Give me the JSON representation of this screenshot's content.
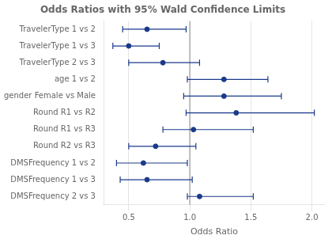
{
  "chart_data": {
    "type": "forest",
    "title": "Odds Ratios with 95% Wald Confidence Limits",
    "xlabel": "Odds Ratio",
    "categories": [
      "TravelerType 1 vs 2",
      "TravelerType 1 vs 3",
      "TravelerType 2 vs 3",
      "age 1 vs 2",
      "gender Female vs Male",
      "Round R1 vs R2",
      "Round R1 vs R3",
      "Round R2 vs R3",
      "DMSFrequency 1 vs 2",
      "DMSFrequency 1 vs 3",
      "DMSFrequency 2 vs 3"
    ],
    "values": [
      0.65,
      0.5,
      0.78,
      1.28,
      1.28,
      1.38,
      1.03,
      0.72,
      0.62,
      0.65,
      1.08
    ],
    "lower": [
      0.45,
      0.37,
      0.5,
      0.98,
      0.95,
      0.97,
      0.78,
      0.5,
      0.4,
      0.43,
      0.98
    ],
    "upper": [
      0.97,
      0.75,
      1.08,
      1.64,
      1.75,
      2.02,
      1.52,
      1.05,
      0.98,
      1.02,
      1.52
    ],
    "xlim": [
      0.3,
      2.1
    ],
    "xticks": [
      0.5,
      {
        "value": 1.0,
        "label": "1.0"
      },
      1.5,
      {
        "value": 2.0,
        "label": "2.0"
      }
    ],
    "ref_line": 1.0,
    "color": "#1a3a8a",
    "grid": true
  }
}
